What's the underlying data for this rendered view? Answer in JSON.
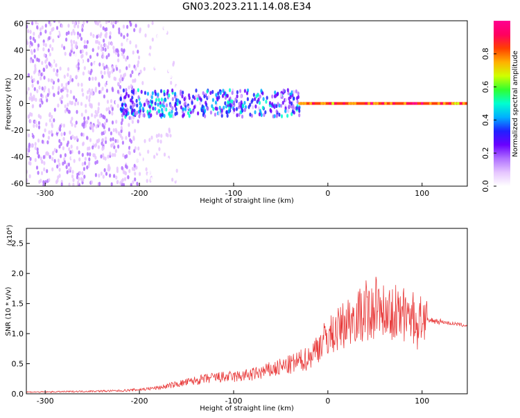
{
  "title": "GN03.2023.211.14.08.E34",
  "colors": {
    "snr_line": "#e83a3a",
    "colorbar": [
      "#ffffff",
      "#e6c6ff",
      "#b070ff",
      "#6a00ff",
      "#2020ff",
      "#00b0ff",
      "#00ffd0",
      "#30ff30",
      "#d0ff00",
      "#ffb000",
      "#ff4000",
      "#ff0060",
      "#ff0090"
    ]
  },
  "chart_data": [
    {
      "type": "heatmap",
      "title": "",
      "xlabel": "Height of straight line (km)",
      "ylabel": "Frequency (Hz)",
      "xlim": [
        -320,
        148
      ],
      "ylim": [
        -62,
        62
      ],
      "xticks": [
        "-300",
        "-200",
        "-100",
        "0",
        "100"
      ],
      "xtick_values": [
        -300,
        -200,
        -100,
        0,
        100
      ],
      "yticks": [
        "60",
        "40",
        "20",
        "0",
        "-20",
        "-40",
        "-60"
      ],
      "ytick_values": [
        60,
        40,
        20,
        0,
        -20,
        -40,
        -60
      ],
      "colorbar": {
        "label": "Normalized spectral amplitude",
        "range": [
          0,
          1
        ],
        "ticks": [
          "0.0",
          "0.2",
          "0.4",
          "0.6",
          "0.8"
        ],
        "tick_values": [
          0.0,
          0.2,
          0.4,
          0.6,
          0.8
        ]
      },
      "features": [
        {
          "x_range": [
            -320,
            -200
          ],
          "frequency_range": [
            -62,
            62
          ],
          "amplitude": 0.1
        },
        {
          "x_range": [
            -200,
            -160
          ],
          "frequency_range": [
            -62,
            62
          ],
          "amplitude": 0.03
        },
        {
          "x_range": [
            -220,
            -30
          ],
          "frequency_range": [
            -10,
            10
          ],
          "amplitude": 0.3
        },
        {
          "x_range": [
            -30,
            100
          ],
          "frequency_range": [
            0,
            0
          ],
          "amplitude": 1.0
        },
        {
          "x_range": [
            100,
            148
          ],
          "frequency_range": [
            0,
            0
          ],
          "amplitude": 1.0
        }
      ]
    },
    {
      "type": "line",
      "title": "",
      "xlabel": "Height of straight line (km)",
      "ylabel": "SNR (10 * v/v)",
      "y_multiplier": "(x10⁴)",
      "xlim": [
        -320,
        148
      ],
      "ylim": [
        0,
        2.75
      ],
      "xticks": [
        "-300",
        "-200",
        "-100",
        "0",
        "100"
      ],
      "xtick_values": [
        -300,
        -200,
        -100,
        0,
        100
      ],
      "yticks": [
        "0.0",
        "0.5",
        "1.0",
        "1.5",
        "2.0",
        "2.5"
      ],
      "ytick_values": [
        0.0,
        0.5,
        1.0,
        1.5,
        2.0,
        2.5
      ],
      "series": [
        {
          "x": [
            -320,
            -300,
            -260,
            -220,
            -200,
            -180,
            -160,
            -140,
            -120,
            -100,
            -80,
            -60,
            -40,
            -20,
            -10,
            0,
            10,
            20,
            30,
            40,
            50,
            60,
            70,
            80,
            90,
            95,
            100,
            105,
            110,
            120,
            130,
            140,
            148
          ],
          "values": [
            0.03,
            0.03,
            0.04,
            0.05,
            0.07,
            0.1,
            0.16,
            0.22,
            0.27,
            0.28,
            0.32,
            0.4,
            0.48,
            0.6,
            0.8,
            0.95,
            1.05,
            1.2,
            1.3,
            1.35,
            1.38,
            1.4,
            1.35,
            1.3,
            1.2,
            1.1,
            1.3,
            1.2,
            1.22,
            1.2,
            1.17,
            1.15,
            1.13
          ]
        }
      ]
    }
  ]
}
